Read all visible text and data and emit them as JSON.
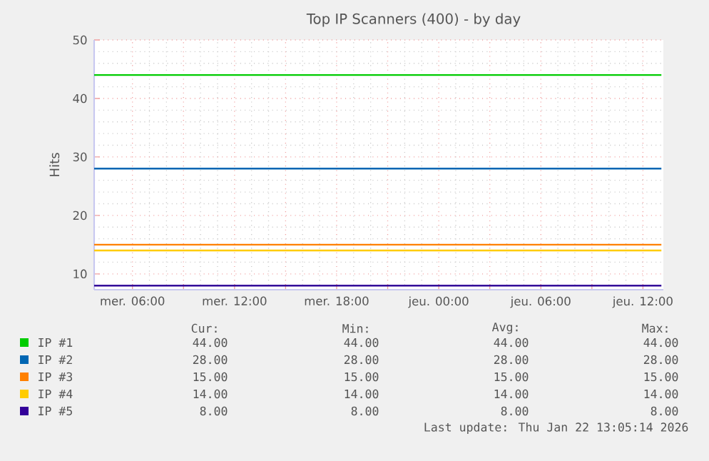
{
  "chart_data": {
    "type": "line",
    "title": "Top IP Scanners (400) - by day",
    "ylabel": "Hits",
    "xlim": [
      "2026-01-21T03:45",
      "2026-01-22T13:12"
    ],
    "ylim": [
      7.3,
      50
    ],
    "xticks": [
      {
        "value": "2026-01-21T06:00",
        "label": "mer. 06:00"
      },
      {
        "value": "2026-01-21T09:00",
        "label": null
      },
      {
        "value": "2026-01-21T12:00",
        "label": "mer. 12:00"
      },
      {
        "value": "2026-01-21T15:00",
        "label": null
      },
      {
        "value": "2026-01-21T18:00",
        "label": "mer. 18:00"
      },
      {
        "value": "2026-01-21T21:00",
        "label": null
      },
      {
        "value": "2026-01-22T00:00",
        "label": "jeu. 00:00"
      },
      {
        "value": "2026-01-22T03:00",
        "label": null
      },
      {
        "value": "2026-01-22T06:00",
        "label": "jeu. 06:00"
      },
      {
        "value": "2026-01-22T09:00",
        "label": null
      },
      {
        "value": "2026-01-22T12:00",
        "label": "jeu. 12:00"
      }
    ],
    "yticks": [
      10,
      20,
      30,
      40,
      50
    ],
    "grid": true,
    "legend": "bottom",
    "marker": "none",
    "line_style": "solid",
    "series": [
      {
        "name": "IP #1",
        "color": "#00cc00",
        "x": [
          "2026-01-21T03:45",
          "2026-01-22T13:05"
        ],
        "values": [
          44,
          44
        ]
      },
      {
        "name": "IP #2",
        "color": "#0066b3",
        "x": [
          "2026-01-21T03:45",
          "2026-01-22T13:05"
        ],
        "values": [
          28,
          28
        ]
      },
      {
        "name": "IP #3",
        "color": "#ff8000",
        "x": [
          "2026-01-21T03:45",
          "2026-01-22T13:05"
        ],
        "values": [
          15,
          15
        ]
      },
      {
        "name": "IP #4",
        "color": "#ffcc00",
        "x": [
          "2026-01-21T03:45",
          "2026-01-22T13:05"
        ],
        "values": [
          14,
          14
        ]
      },
      {
        "name": "IP #5",
        "color": "#330099",
        "x": [
          "2026-01-21T03:45",
          "2026-01-22T13:05"
        ],
        "values": [
          8,
          8
        ]
      }
    ],
    "annotations": [
      "Cur:",
      "Min:",
      "Avg:",
      "Max:",
      "44.00",
      "44.00",
      "44.00",
      "44.00",
      "28.00",
      "28.00",
      "28.00",
      "28.00",
      "15.00",
      "15.00",
      "15.00",
      "15.00",
      "14.00",
      "14.00",
      "14.00",
      "14.00",
      "8.00",
      "8.00",
      "8.00",
      "8.00",
      "Last update: Thu Jan 22 13:05:14 2026"
    ]
  }
}
